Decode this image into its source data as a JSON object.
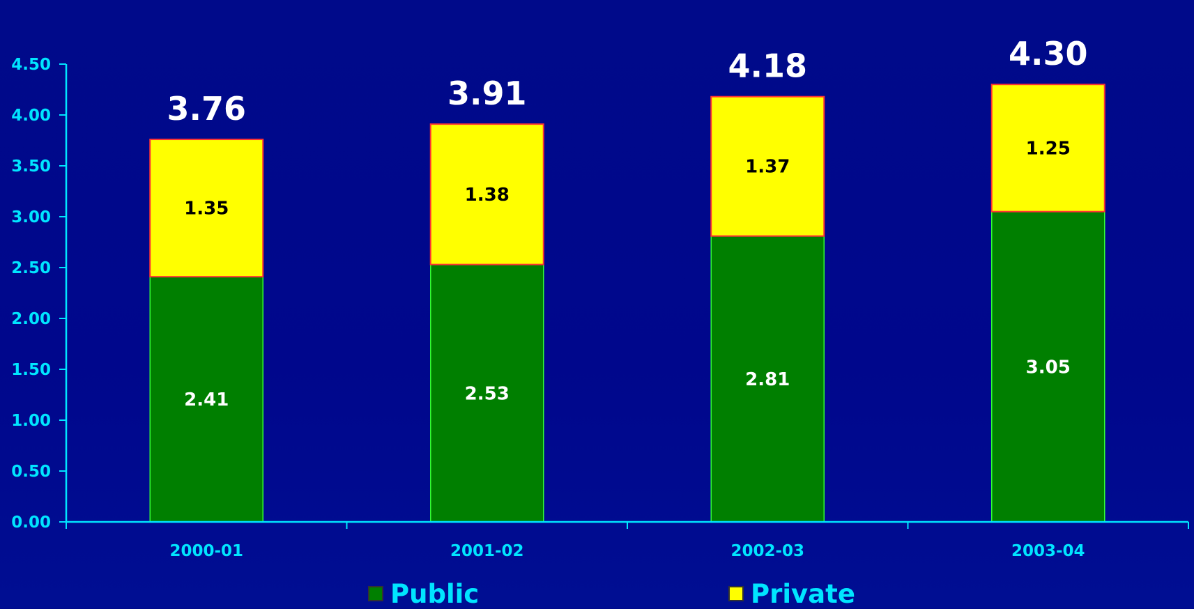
{
  "chart_data": {
    "type": "bar",
    "stacked": true,
    "categories": [
      "2000-01",
      "2001-02",
      "2002-03",
      "2003-04"
    ],
    "series": [
      {
        "name": "Public",
        "values": [
          2.41,
          2.53,
          2.81,
          3.05
        ],
        "color": "#007f00"
      },
      {
        "name": "Private",
        "values": [
          1.35,
          1.38,
          1.37,
          1.25
        ],
        "color": "#ffff00"
      }
    ],
    "totals": [
      "3.76",
      "3.91",
      "4.18",
      "4.30"
    ],
    "segment_labels": {
      "Public": [
        "2.41",
        "2.53",
        "2.81",
        "3.05"
      ],
      "Private": [
        "1.35",
        "1.38",
        "1.37",
        "1.25"
      ]
    },
    "yticks": [
      "0.00",
      "0.50",
      "1.00",
      "1.50",
      "2.00",
      "2.50",
      "3.00",
      "3.50",
      "4.00",
      "4.50"
    ],
    "ylim": [
      0,
      4.5
    ],
    "grid": false,
    "legend_position": "bottom",
    "title": "",
    "xlabel": "",
    "ylabel": ""
  },
  "legend": {
    "public_label": "Public",
    "private_label": "Private",
    "public_color": "#007f00",
    "private_color": "#ffff00"
  },
  "colors": {
    "background": "#00078c",
    "axis": "#00e5ff",
    "public_outline": "#33ff33",
    "private_outline": "#ff3333"
  }
}
